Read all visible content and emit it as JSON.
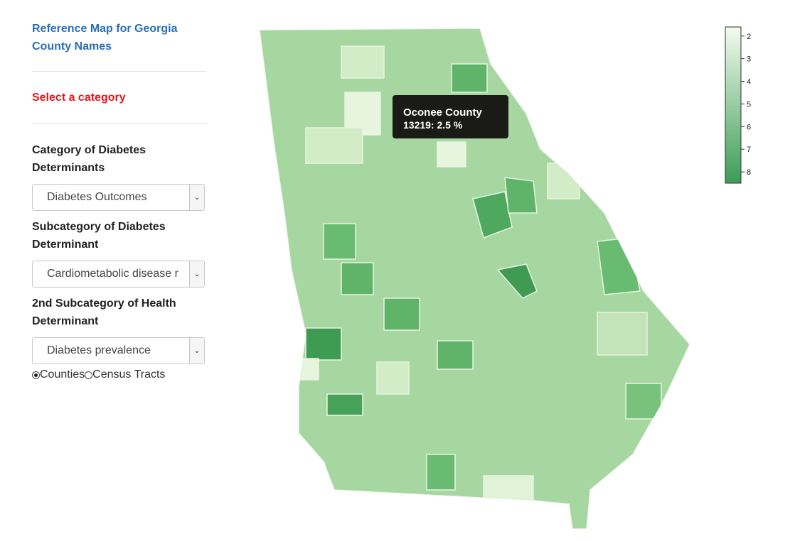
{
  "sidebar": {
    "reference_link": "Reference Map for Georgia County Names",
    "select_prompt": "Select a category",
    "fields": [
      {
        "label": "Category of Diabetes Determinants",
        "selected": "Diabetes Outcomes"
      },
      {
        "label": "Subcategory of Diabetes Determinant",
        "selected": "Cardiometabolic disease r"
      },
      {
        "label": "2nd Subcategory of Health Determinant",
        "selected": "Diabetes prevalence"
      }
    ],
    "radio": {
      "options": [
        "Counties",
        "Census Tracts"
      ],
      "checked": 0
    }
  },
  "tooltip": {
    "county": "Oconee County",
    "value_text": "13219: 2.5 %"
  },
  "legend": {
    "lim": [
      1.6,
      8.5
    ],
    "ticks": [
      2,
      3,
      4,
      5,
      6,
      7,
      8
    ],
    "colors": [
      "#f3fbef",
      "#3c9c55"
    ]
  }
}
